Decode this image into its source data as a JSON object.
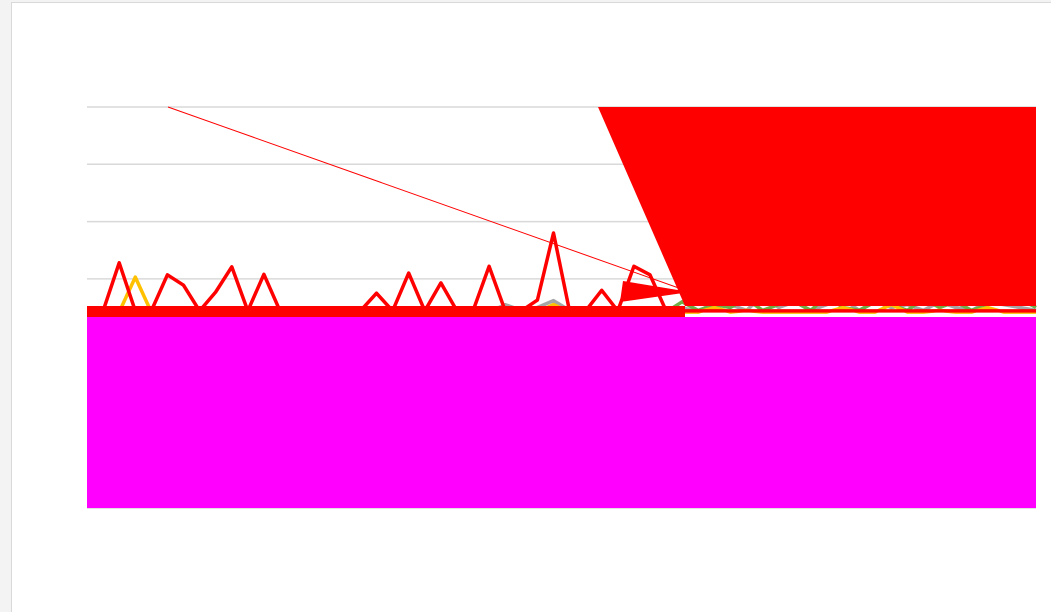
{
  "chart_data": {
    "type": "line",
    "x": [
      0,
      1,
      2,
      3,
      4,
      5,
      6,
      7,
      8,
      9,
      10,
      11,
      12,
      13,
      14,
      15,
      16,
      17,
      18,
      19,
      20,
      21,
      22,
      23,
      24,
      25,
      26,
      27,
      28,
      29,
      30,
      31,
      32,
      33,
      34,
      35,
      36,
      37,
      38,
      39,
      40,
      41,
      42,
      43,
      44,
      45,
      46,
      47,
      48,
      49,
      50,
      51,
      52,
      53,
      54,
      55,
      56,
      57,
      58,
      59
    ],
    "xlim": [
      0,
      59
    ],
    "ylim": [
      0,
      7
    ],
    "yticks": [
      0,
      1,
      2,
      3,
      4,
      5,
      6,
      7
    ],
    "grid": true,
    "series": [
      {
        "name": null,
        "color": "#a5a5a5",
        "values": [
          3.42,
          3.42,
          3.42,
          3.42,
          3.42,
          3.42,
          3.42,
          3.42,
          3.42,
          3.42,
          3.42,
          3.42,
          3.42,
          3.42,
          3.42,
          3.42,
          3.42,
          3.42,
          3.42,
          3.42,
          3.42,
          3.42,
          3.42,
          3.42,
          3.42,
          3.42,
          3.55,
          3.45,
          3.5,
          3.62,
          3.45,
          3.42,
          3.42,
          3.42,
          3.42,
          3.42,
          3.42,
          3.5,
          3.42,
          3.6,
          3.55,
          3.45,
          3.7,
          3.5,
          3.6,
          3.45,
          3.55,
          3.65,
          3.45,
          3.6,
          3.5,
          3.55,
          3.45,
          3.6,
          3.5,
          3.45,
          3.6,
          3.55,
          3.5,
          3.45
        ]
      },
      {
        "name": null,
        "color": "#70ad47",
        "values": [
          3.42,
          3.42,
          3.42,
          3.42,
          3.42,
          3.42,
          3.42,
          3.42,
          3.42,
          3.42,
          3.42,
          3.42,
          3.42,
          3.42,
          3.42,
          3.42,
          3.42,
          3.42,
          3.42,
          3.42,
          3.42,
          3.42,
          3.42,
          3.42,
          3.42,
          3.42,
          3.42,
          3.42,
          3.42,
          3.42,
          3.42,
          3.42,
          3.42,
          3.42,
          3.42,
          3.42,
          3.42,
          3.6,
          3.45,
          3.55,
          3.5,
          3.65,
          3.45,
          3.55,
          3.6,
          3.45,
          3.7,
          3.5,
          3.45,
          3.6,
          3.55,
          3.45,
          3.65,
          3.5,
          3.6,
          3.45,
          3.55,
          3.6,
          3.65,
          3.5
        ]
      },
      {
        "name": null,
        "color": "#ffc000",
        "values": [
          3.42,
          3.42,
          3.42,
          4.03,
          3.42,
          3.42,
          3.42,
          3.42,
          3.42,
          3.42,
          3.42,
          3.42,
          3.42,
          3.42,
          3.42,
          3.42,
          3.42,
          3.42,
          3.42,
          3.42,
          3.42,
          3.42,
          3.42,
          3.42,
          3.42,
          3.42,
          3.42,
          3.42,
          3.42,
          3.55,
          3.42,
          3.42,
          3.42,
          3.42,
          3.42,
          3.42,
          3.42,
          3.42,
          3.42,
          3.5,
          3.42,
          3.45,
          3.42,
          3.42,
          3.42,
          3.42,
          3.42,
          3.5,
          3.42,
          3.42,
          3.55,
          3.42,
          3.42,
          3.45,
          3.42,
          3.42,
          3.5,
          3.42,
          3.42,
          3.42
        ]
      },
      {
        "name": null,
        "color": "#ff0000",
        "values": [
          3.44,
          3.44,
          4.28,
          3.44,
          3.44,
          4.07,
          3.89,
          3.44,
          3.77,
          4.21,
          3.44,
          4.08,
          3.44,
          3.44,
          3.44,
          3.44,
          3.44,
          3.44,
          3.75,
          3.44,
          4.1,
          3.44,
          3.93,
          3.44,
          3.44,
          4.22,
          3.44,
          3.44,
          3.63,
          4.8,
          3.44,
          3.44,
          3.8,
          3.44,
          4.22,
          4.07,
          3.44,
          3.44,
          3.44,
          3.44,
          3.44,
          3.44,
          3.44,
          3.44,
          3.44,
          3.44,
          3.44,
          3.44,
          3.44,
          3.44,
          3.44,
          3.44,
          3.44,
          3.44,
          3.44,
          3.44,
          3.44,
          3.44,
          3.44,
          3.44
        ]
      }
    ]
  }
}
